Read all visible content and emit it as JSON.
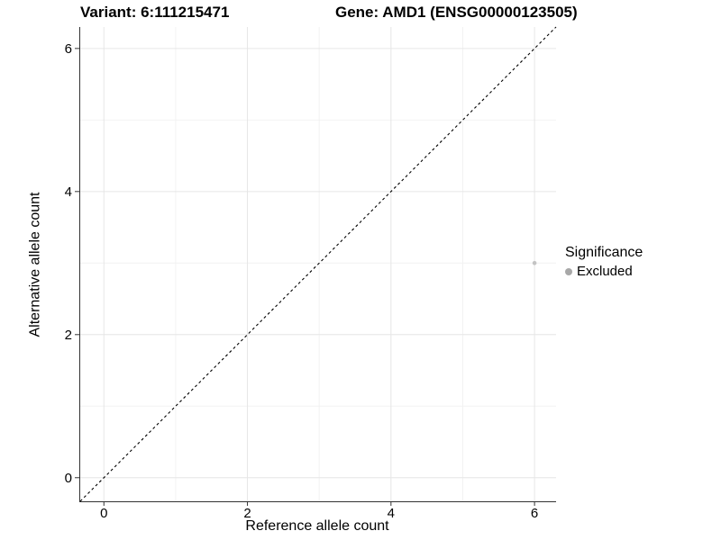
{
  "chart_data": {
    "type": "scatter",
    "title_left": "Variant: 6:111215471",
    "title_right": "Gene: AMD1 (ENSG00000123505)",
    "xlabel": "Reference allele count",
    "ylabel": "Alternative allele count",
    "xlim": [
      -0.33,
      6.3
    ],
    "ylim": [
      -0.33,
      6.3
    ],
    "xticks": [
      0,
      2,
      4,
      6
    ],
    "yticks": [
      0,
      2,
      4,
      6
    ],
    "xticks_minor": [
      1,
      3,
      5
    ],
    "yticks_minor": [
      1,
      3,
      5
    ],
    "grid": "on",
    "legend_position": "right",
    "reference_line": {
      "kind": "identity",
      "slope": 1,
      "intercept": 0,
      "style": "dashed",
      "color": "#000000"
    },
    "series": [
      {
        "name": "Excluded",
        "color": "#c3c3c3",
        "point_radius": 2.3,
        "points": [
          {
            "x": 6,
            "y": 3
          }
        ]
      }
    ],
    "legend": {
      "title": "Significance",
      "entries": [
        {
          "label": "Excluded",
          "color": "#a8a8a8"
        }
      ]
    }
  },
  "colors": {
    "background": "#ffffff",
    "grid_major": "#e6e6e6",
    "grid_minor": "#f2f2f2",
    "axis_line": "#333333",
    "tick_mark": "#333333",
    "text": "#000000"
  }
}
